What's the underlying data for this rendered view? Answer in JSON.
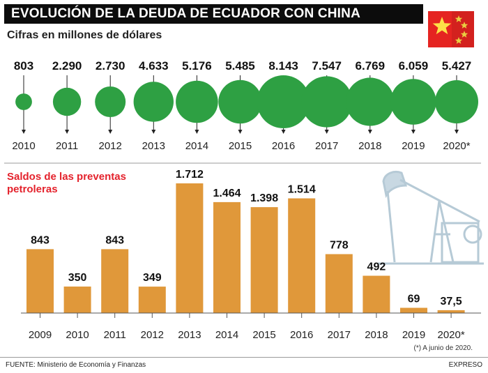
{
  "header": {
    "title": "EVOLUCIÓN DE LA DEUDA DE ECUADOR CON CHINA",
    "subtitle": "Cifras en millones de dólares"
  },
  "colors": {
    "circle": "#2ea043",
    "bar": "#e0983a",
    "accent_red": "#e4222c",
    "flag_red": "#e52421",
    "flag_star": "#fde047"
  },
  "chart_data": [
    {
      "type": "bubble",
      "name": "Evolución de la deuda de Ecuador con China",
      "unit": "millones de dólares",
      "categories": [
        "2010",
        "2011",
        "2012",
        "2013",
        "2014",
        "2015",
        "2016",
        "2017",
        "2018",
        "2019",
        "2020*"
      ],
      "labels": [
        "803",
        "2.290",
        "2.730",
        "4.633",
        "5.176",
        "5.485",
        "8.143",
        "7.547",
        "6.769",
        "6.059",
        "5.427"
      ],
      "values": [
        803,
        2290,
        2730,
        4633,
        5176,
        5485,
        8143,
        7547,
        6769,
        6059,
        5427
      ]
    },
    {
      "type": "bar",
      "title": "Saldos de las preventas petroleras",
      "categories": [
        "2009",
        "2010",
        "2011",
        "2012",
        "2013",
        "2014",
        "2015",
        "2016",
        "2017",
        "2018",
        "2019",
        "2020*"
      ],
      "labels": [
        "843",
        "350",
        "843",
        "349",
        "1.712",
        "1.464",
        "1.398",
        "1.514",
        "778",
        "492",
        "69",
        "37,5"
      ],
      "values": [
        843,
        350,
        843,
        349,
        1712,
        1464,
        1398,
        1514,
        778,
        492,
        69,
        37.5
      ]
    }
  ],
  "note": "(*) A junio de 2020.",
  "footer": {
    "source": "FUENTE: Ministerio de Economía y Finanzas",
    "brand": "EXPRESO"
  }
}
